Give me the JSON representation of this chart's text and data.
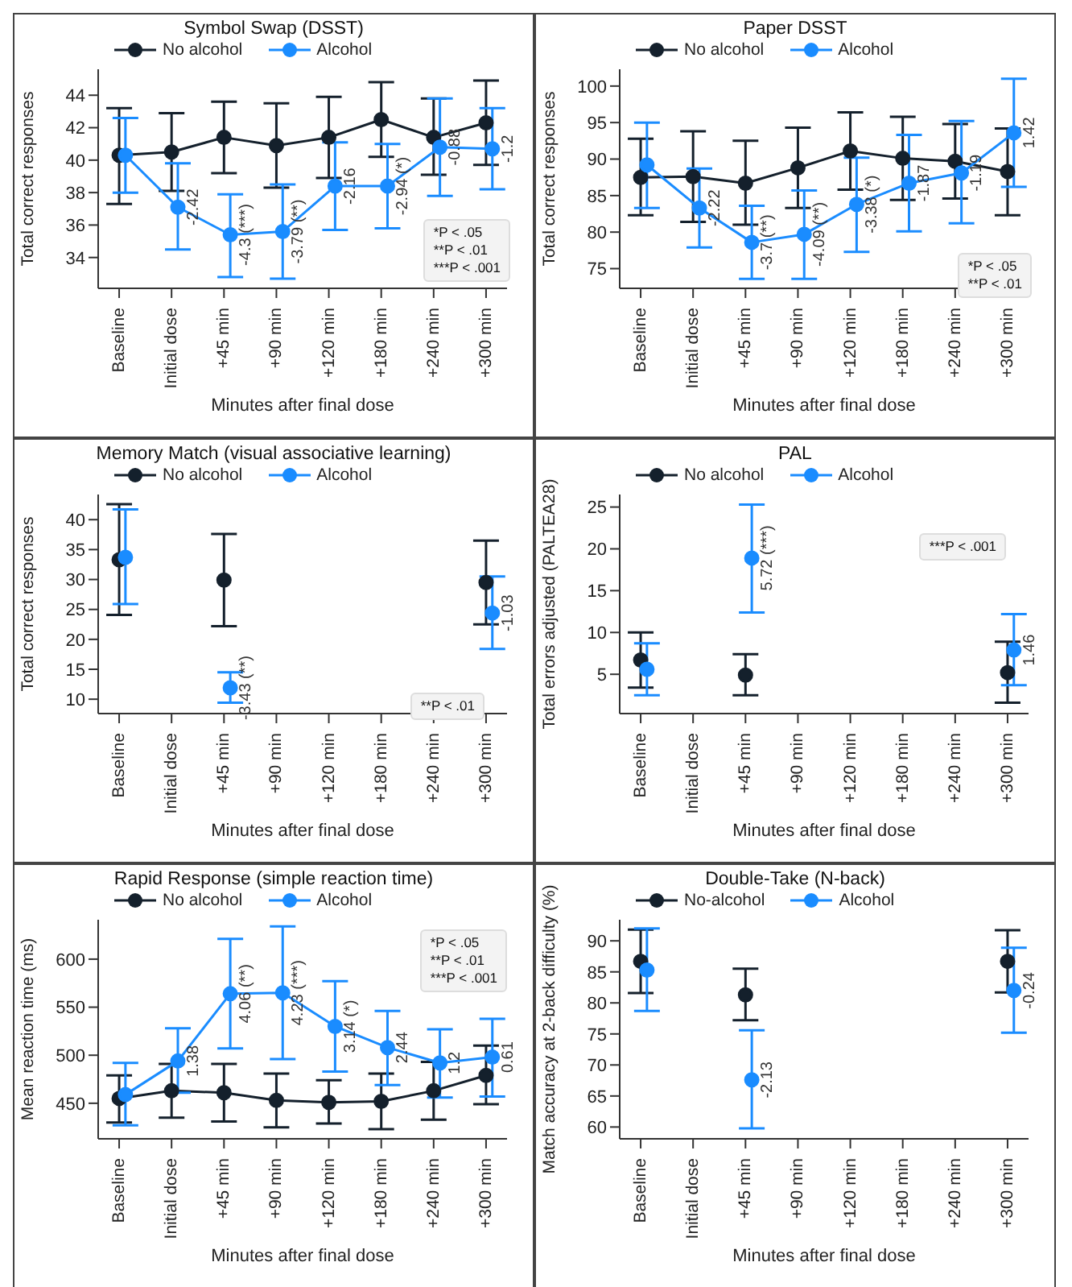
{
  "chart_data": [
    {
      "type": "line",
      "title": "Symbol Swap (DSST)",
      "xlabel": "Minutes after final dose",
      "ylabel": "Total correct responses",
      "categories": [
        "Baseline",
        "Initial dose",
        "+45 min",
        "+90 min",
        "+120 min",
        "+180 min",
        "+240 min",
        "+300 min"
      ],
      "ylim": [
        32.1,
        45.6
      ],
      "yticks": [
        34,
        36,
        38,
        40,
        42,
        44
      ],
      "legend": "top left",
      "marker": "circle",
      "line_style": "solid",
      "series": [
        {
          "name": "No alcohol",
          "color": "#14202c",
          "values": [
            40.3,
            40.5,
            41.4,
            40.9,
            41.4,
            42.5,
            41.4,
            42.3
          ],
          "errors": [
            [
              37.3,
              43.2
            ],
            [
              38.1,
              42.9
            ],
            [
              39.2,
              43.6
            ],
            [
              38.3,
              43.5
            ],
            [
              38.9,
              43.9
            ],
            [
              40.2,
              44.8
            ],
            [
              39.1,
              43.8
            ],
            [
              39.7,
              44.9
            ]
          ]
        },
        {
          "name": "Alcohol",
          "color": "#1a8cff",
          "values": [
            40.3,
            37.1,
            35.4,
            35.6,
            38.4,
            38.4,
            40.8,
            40.7
          ],
          "errors": [
            [
              38.0,
              42.6
            ],
            [
              34.5,
              39.8
            ],
            [
              32.8,
              37.9
            ],
            [
              32.7,
              38.5
            ],
            [
              35.7,
              41.1
            ],
            [
              35.8,
              41.0
            ],
            [
              37.8,
              43.8
            ],
            [
              38.2,
              43.2
            ]
          ]
        }
      ],
      "annotations": [
        "*P < .05",
        "**P < .01",
        "***P < .001",
        {
          "text": "-2.42",
          "x": "Initial dose",
          "y": 37.1
        },
        {
          "text": "-4.3 (***)",
          "x": "+45 min",
          "y": 35.4
        },
        {
          "text": "-3.79 (**)",
          "x": "+90 min",
          "y": 35.6
        },
        {
          "text": "-2.16",
          "x": "+120 min",
          "y": 38.4
        },
        {
          "text": "-2.94 (*)",
          "x": "+180 min",
          "y": 38.4
        },
        {
          "text": "-0.88",
          "x": "+240 min",
          "y": 40.8
        },
        {
          "text": "-1.2",
          "x": "+300 min",
          "y": 40.7
        }
      ]
    },
    {
      "type": "line",
      "title": "Paper DSST",
      "xlabel": "Minutes after final dose",
      "ylabel": "Total correct responses",
      "categories": [
        "Baseline",
        "Initial dose",
        "+45 min",
        "+90 min",
        "+120 min",
        "+180 min",
        "+240 min",
        "+300 min"
      ],
      "ylim": [
        72.3,
        102.3
      ],
      "yticks": [
        75,
        80,
        85,
        90,
        95,
        100
      ],
      "legend": "top left",
      "marker": "circle",
      "line_style": "solid",
      "series": [
        {
          "name": "No alcohol",
          "color": "#14202c",
          "values": [
            87.5,
            87.6,
            86.7,
            88.8,
            91.1,
            90.1,
            89.7,
            88.3
          ],
          "errors": [
            [
              82.3,
              92.8
            ],
            [
              81.4,
              93.8
            ],
            [
              81.0,
              92.5
            ],
            [
              83.3,
              94.3
            ],
            [
              85.8,
              96.4
            ],
            [
              84.4,
              95.8
            ],
            [
              84.6,
              94.8
            ],
            [
              82.3,
              94.2
            ]
          ]
        },
        {
          "name": "Alcohol",
          "color": "#1a8cff",
          "values": [
            89.2,
            83.3,
            78.6,
            79.7,
            83.8,
            86.7,
            88.1,
            93.6
          ],
          "errors": [
            [
              83.3,
              95.0
            ],
            [
              77.9,
              88.7
            ],
            [
              73.6,
              83.6
            ],
            [
              73.6,
              85.7
            ],
            [
              77.3,
              90.2
            ],
            [
              80.1,
              93.3
            ],
            [
              81.2,
              95.2
            ],
            [
              86.2,
              101.0
            ]
          ]
        }
      ],
      "annotations": [
        "*P < .05",
        "**P < .01",
        {
          "text": "-2.22",
          "x": "Initial dose",
          "y": 83.3
        },
        {
          "text": "-3.7 (**)",
          "x": "+45 min",
          "y": 78.6
        },
        {
          "text": "-4.09 (**)",
          "x": "+90 min",
          "y": 79.7
        },
        {
          "text": "-3.38 (*)",
          "x": "+120 min",
          "y": 83.8
        },
        {
          "text": "-1.87",
          "x": "+180 min",
          "y": 86.7
        },
        {
          "text": "-1.19",
          "x": "+240 min",
          "y": 88.1
        },
        {
          "text": "1.42",
          "x": "+300 min",
          "y": 93.6
        }
      ]
    },
    {
      "type": "line",
      "title": "Memory Match (visual associative learning)",
      "xlabel": "Minutes after final dose",
      "ylabel": "Total correct responses",
      "categories": [
        "Baseline",
        "Initial dose",
        "+45 min",
        "+90 min",
        "+120 min",
        "+180 min",
        "+240 min",
        "+300 min"
      ],
      "ylim": [
        7.6,
        44.2
      ],
      "yticks": [
        10,
        15,
        20,
        25,
        30,
        35,
        40
      ],
      "legend": "top left",
      "marker": "circle",
      "line_style": "solid",
      "series": [
        {
          "name": "No alcohol",
          "color": "#14202c",
          "values": [
            33.3,
            null,
            29.9,
            null,
            null,
            null,
            null,
            29.5
          ],
          "errors": [
            [
              24.1,
              42.6
            ],
            null,
            [
              22.2,
              37.6
            ],
            null,
            null,
            null,
            null,
            [
              22.5,
              36.5
            ]
          ]
        },
        {
          "name": "Alcohol",
          "color": "#1a8cff",
          "values": [
            33.7,
            null,
            11.9,
            null,
            null,
            null,
            null,
            24.4
          ],
          "errors": [
            [
              25.9,
              41.7
            ],
            null,
            [
              9.4,
              14.5
            ],
            null,
            null,
            null,
            null,
            [
              18.4,
              30.5
            ]
          ]
        }
      ],
      "annotations": [
        "**P < .01",
        {
          "text": "-3.43 (**)",
          "x": "+45 min",
          "y": 11.9
        },
        {
          "text": "-1.03",
          "x": "+300 min",
          "y": 24.4
        }
      ]
    },
    {
      "type": "line",
      "title": "PAL",
      "xlabel": "Minutes after final dose",
      "ylabel": "Total errors adjusted (PALTEA28)",
      "categories": [
        "Baseline",
        "Initial dose",
        "+45 min",
        "+90 min",
        "+120 min",
        "+180 min",
        "+240 min",
        "+300 min"
      ],
      "ylim": [
        0.3,
        26.5
      ],
      "yticks": [
        5,
        10,
        15,
        20,
        25
      ],
      "legend": "top left",
      "marker": "circle",
      "line_style": "solid",
      "series": [
        {
          "name": "No alcohol",
          "color": "#14202c",
          "values": [
            6.7,
            null,
            4.9,
            null,
            null,
            null,
            null,
            5.2
          ],
          "errors": [
            [
              3.4,
              10.0
            ],
            null,
            [
              2.5,
              7.4
            ],
            null,
            null,
            null,
            null,
            [
              1.6,
              8.9
            ]
          ]
        },
        {
          "name": "Alcohol",
          "color": "#1a8cff",
          "values": [
            5.6,
            null,
            18.9,
            null,
            null,
            null,
            null,
            7.9
          ],
          "errors": [
            [
              2.5,
              8.7
            ],
            null,
            [
              12.4,
              25.3
            ],
            null,
            null,
            null,
            null,
            [
              3.7,
              12.2
            ]
          ]
        }
      ],
      "annotations": [
        "***P < .001",
        {
          "text": "5.72 (***)",
          "x": "+45 min",
          "y": 18.9
        },
        {
          "text": "1.46",
          "x": "+300 min",
          "y": 7.9
        }
      ]
    },
    {
      "type": "line",
      "title": "Rapid Response (simple reaction time)",
      "xlabel": "Minutes after final dose",
      "ylabel": "Mean reaction time (ms)",
      "categories": [
        "Baseline",
        "Initial dose",
        "+45 min",
        "+90 min",
        "+120 min",
        "+180 min",
        "+240 min",
        "+300 min"
      ],
      "ylim": [
        413,
        641
      ],
      "yticks": [
        450,
        500,
        550,
        600
      ],
      "legend": "top left",
      "marker": "circle",
      "line_style": "solid",
      "series": [
        {
          "name": "No alcohol",
          "color": "#14202c",
          "values": [
            455,
            463,
            461,
            453,
            451,
            452,
            463,
            479
          ],
          "errors": [
            [
              430,
              479
            ],
            [
              435,
              491
            ],
            [
              431,
              491
            ],
            [
              425,
              481
            ],
            [
              429,
              474
            ],
            [
              423,
              481
            ],
            [
              433,
              493
            ],
            [
              449,
              510
            ]
          ]
        },
        {
          "name": "Alcohol",
          "color": "#1a8cff",
          "values": [
            459,
            494,
            564,
            565,
            530,
            508,
            492,
            498
          ],
          "errors": [
            [
              427,
              492
            ],
            [
              461,
              528
            ],
            [
              507,
              621
            ],
            [
              496,
              634
            ],
            [
              483,
              577
            ],
            [
              469,
              546
            ],
            [
              456,
              527
            ],
            [
              457,
              538
            ]
          ]
        }
      ],
      "annotations": [
        "*P < .05",
        "**P < .01",
        "***P < .001",
        {
          "text": "1.38",
          "x": "Initial dose",
          "y": 494
        },
        {
          "text": "4.06 (**)",
          "x": "+45 min",
          "y": 564
        },
        {
          "text": "4.23 (***)",
          "x": "+90 min",
          "y": 565
        },
        {
          "text": "3.14 (*)",
          "x": "+120 min",
          "y": 530
        },
        {
          "text": "2.44",
          "x": "+180 min",
          "y": 508
        },
        {
          "text": "1.2",
          "x": "+240 min",
          "y": 492
        },
        {
          "text": "0.61",
          "x": "+300 min",
          "y": 498
        }
      ]
    },
    {
      "type": "line",
      "title": "Double-Take (N-back)",
      "xlabel": "Minutes after final dose",
      "ylabel": "Match accuracy at 2-back difficulty (%)",
      "categories": [
        "Baseline",
        "Initial dose",
        "+45 min",
        "+90 min",
        "+120 min",
        "+180 min",
        "+240 min",
        "+300 min"
      ],
      "ylim": [
        58.1,
        93.4
      ],
      "yticks": [
        60,
        65,
        70,
        75,
        80,
        85,
        90
      ],
      "legend": "top left",
      "marker": "circle",
      "line_style": "solid",
      "series": [
        {
          "name": "No-alcohol",
          "color": "#14202c",
          "values": [
            86.7,
            null,
            81.3,
            null,
            null,
            null,
            null,
            86.7
          ],
          "errors": [
            [
              81.6,
              91.8
            ],
            null,
            [
              77.2,
              85.5
            ],
            null,
            null,
            null,
            null,
            [
              81.7,
              91.7
            ]
          ]
        },
        {
          "name": "Alcohol",
          "color": "#1a8cff",
          "values": [
            85.3,
            null,
            67.6,
            null,
            null,
            null,
            null,
            82.0
          ],
          "errors": [
            [
              78.7,
              92.0
            ],
            null,
            [
              59.8,
              75.6
            ],
            null,
            null,
            null,
            null,
            [
              75.2,
              88.9
            ]
          ]
        }
      ],
      "annotations": [
        {
          "text": "-2.13",
          "x": "+45 min",
          "y": 67.6
        },
        {
          "text": "-0.24",
          "x": "+300 min",
          "y": 82.0
        }
      ]
    }
  ]
}
